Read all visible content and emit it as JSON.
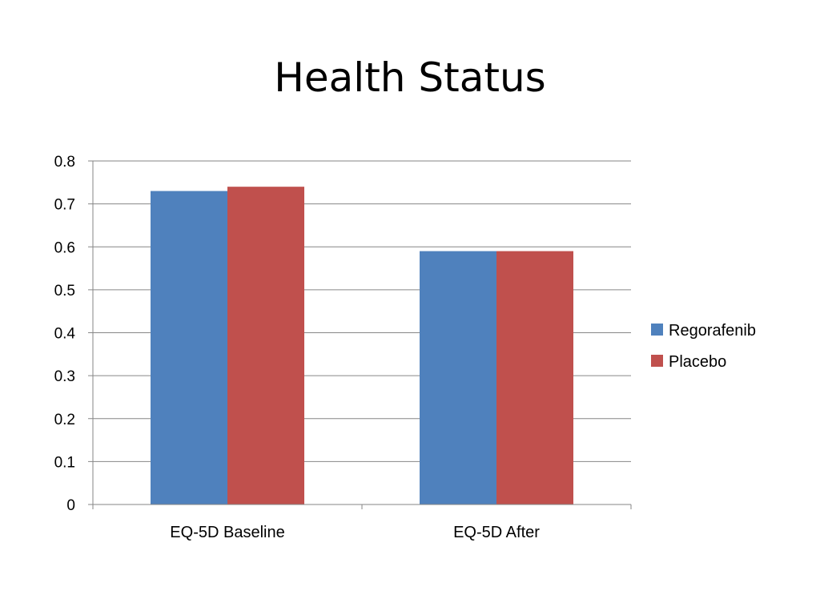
{
  "chart_data": {
    "type": "bar",
    "title": "Health Status",
    "categories": [
      "EQ-5D Baseline",
      "EQ-5D After"
    ],
    "series": [
      {
        "name": "Regorafenib",
        "values": [
          0.73,
          0.59
        ],
        "color": "#4F81BD"
      },
      {
        "name": "Placebo",
        "values": [
          0.74,
          0.59
        ],
        "color": "#C0504D"
      }
    ],
    "xlabel": "",
    "ylabel": "",
    "ylim": [
      0,
      0.8
    ],
    "yticks": [
      "0",
      "0.1",
      "0.2",
      "0.3",
      "0.4",
      "0.5",
      "0.6",
      "0.7",
      "0.8"
    ],
    "grid": true,
    "legend_position": "right"
  }
}
